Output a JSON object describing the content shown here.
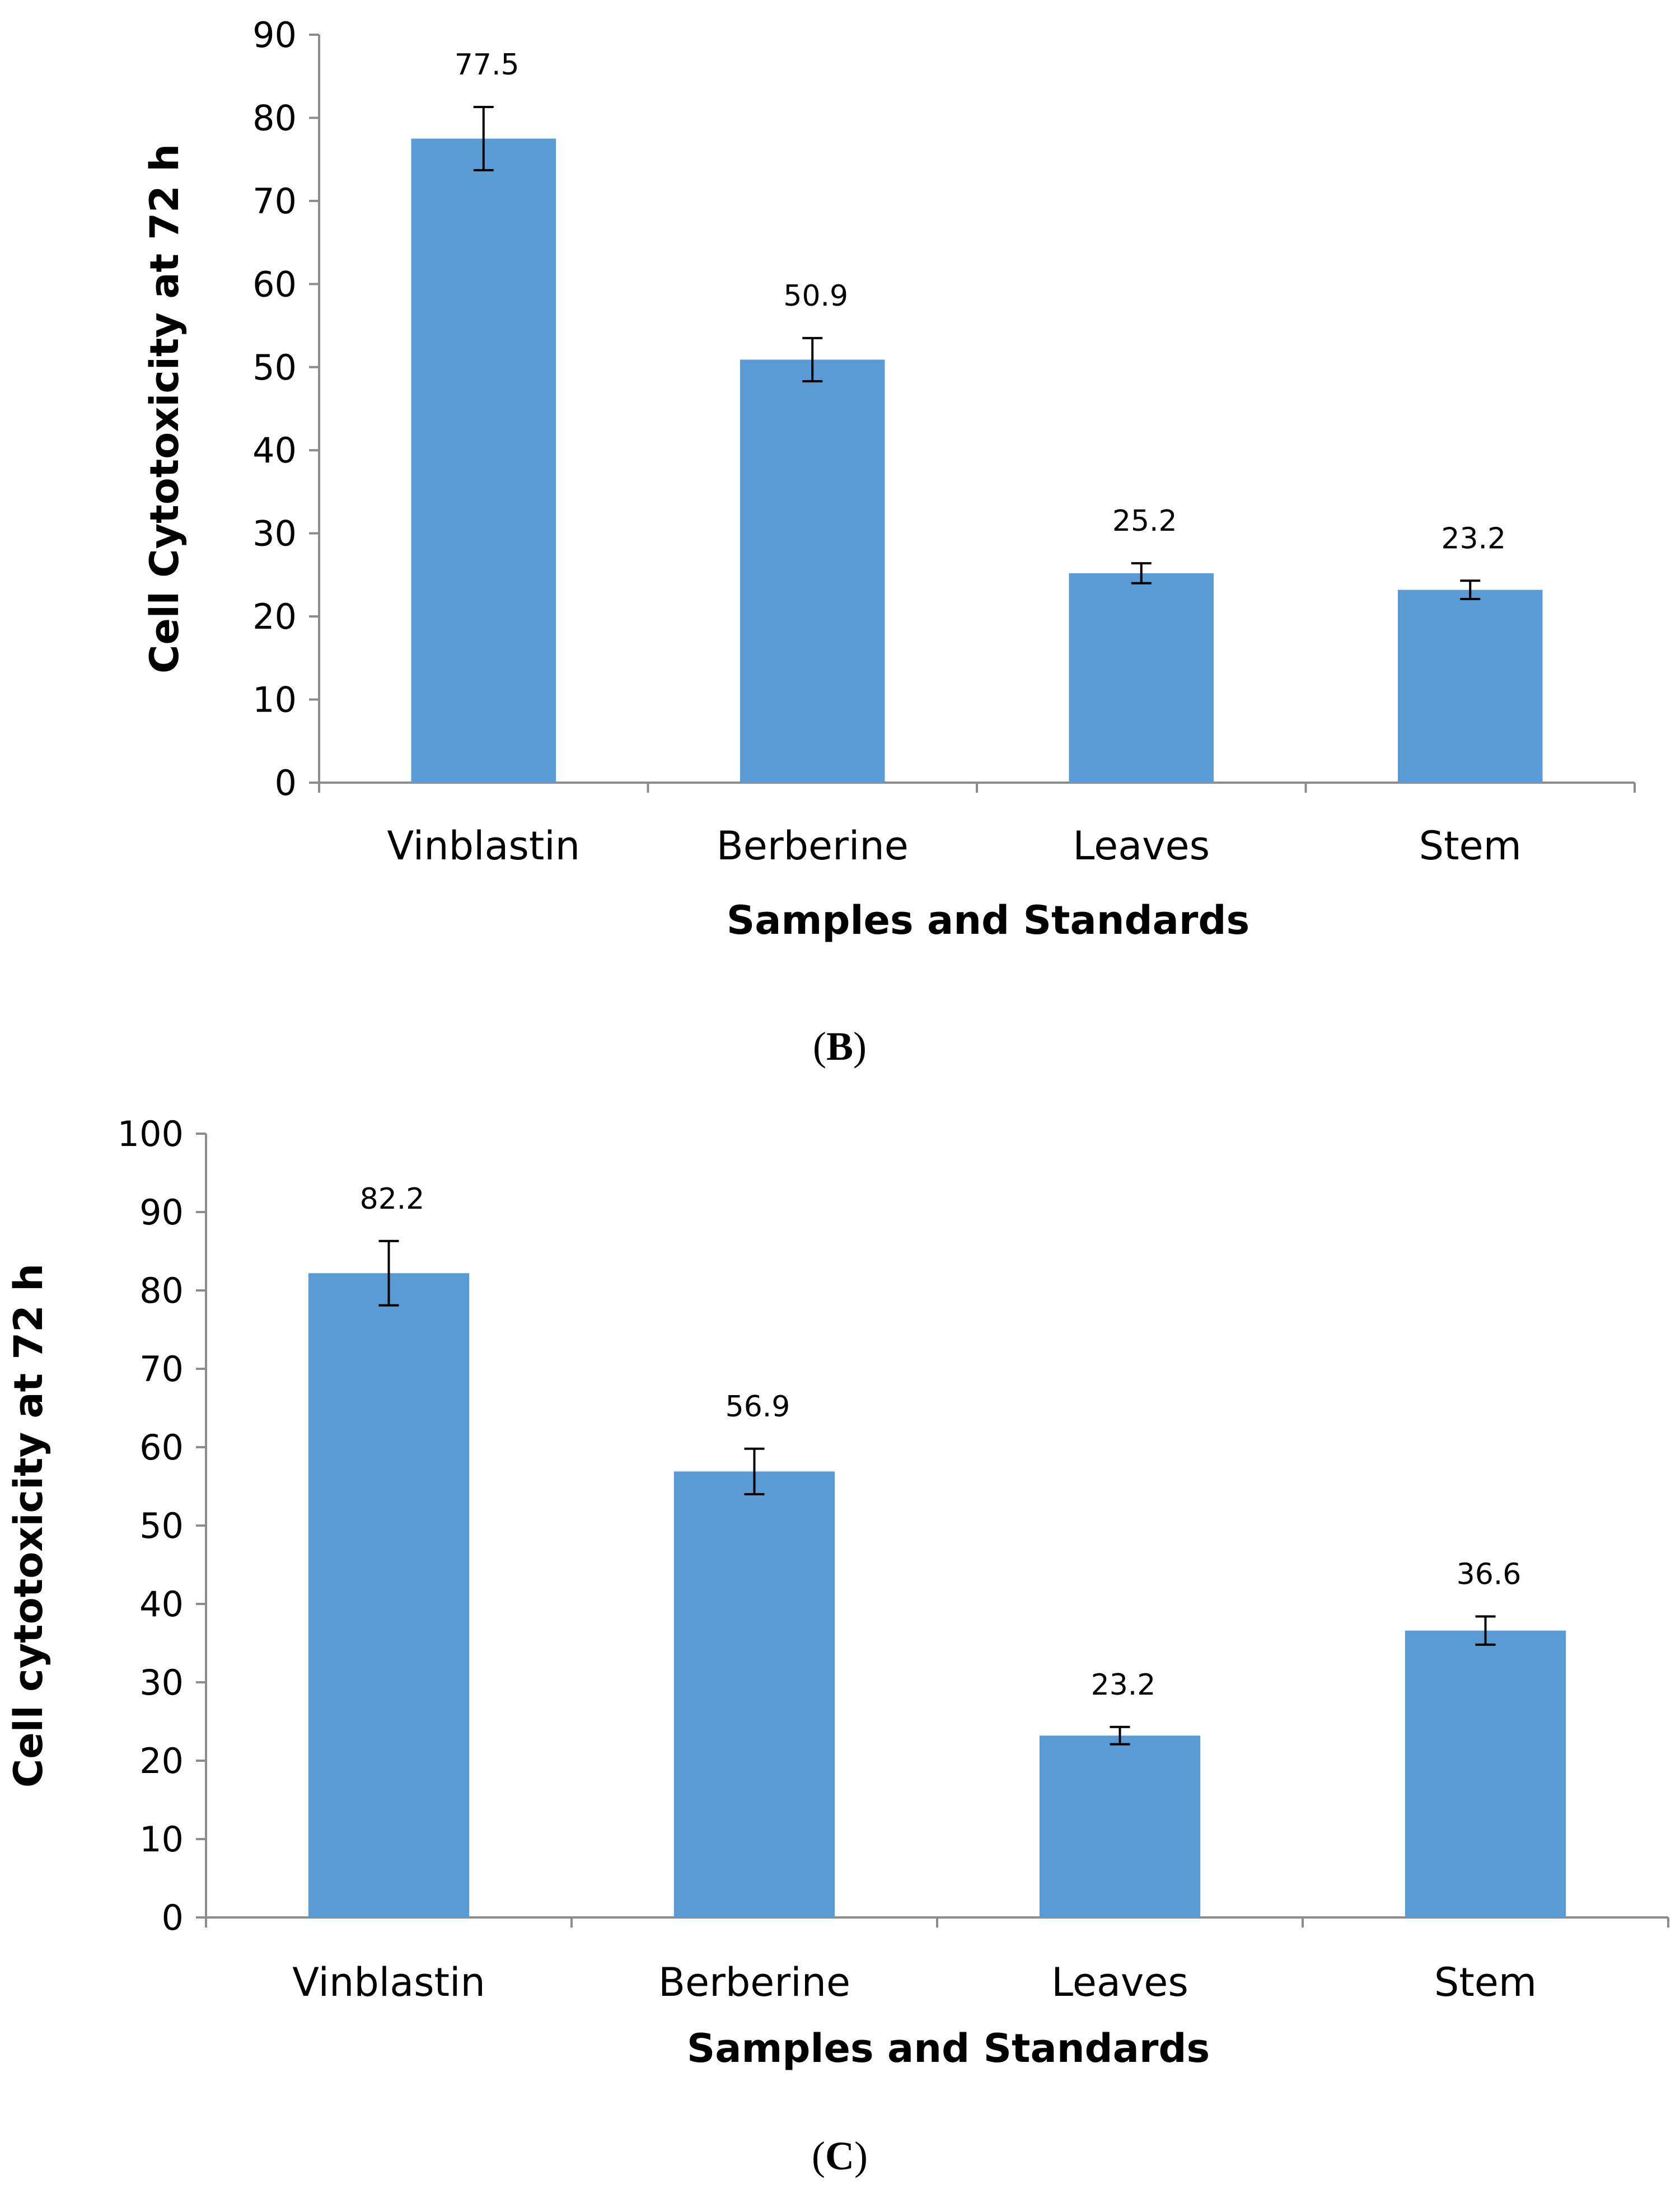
{
  "colors": {
    "bar": "#5b9bd5",
    "axis": "#8c8c8c",
    "error_bar": "#000000"
  },
  "chart_data": [
    {
      "type": "bar",
      "panel": "B",
      "panel_open": "(",
      "panel_close": ")",
      "title": "",
      "xlabel": "Samples and Standards",
      "ylabel": "Cell Cytotoxicity at 72 h",
      "ylim": [
        0,
        90
      ],
      "yticks": [
        0,
        10,
        20,
        30,
        40,
        50,
        60,
        70,
        80,
        90
      ],
      "categories": [
        "Vinblastin",
        "Berberine",
        "Leaves",
        "Stem"
      ],
      "values": [
        77.5,
        50.9,
        25.2,
        23.2
      ],
      "value_labels": [
        "77.5",
        "50.9",
        "25.2",
        "23.2"
      ],
      "errors": [
        3.8,
        2.6,
        1.2,
        1.1
      ],
      "grid": false,
      "legend": "none"
    },
    {
      "type": "bar",
      "panel": "C",
      "panel_open": "(",
      "panel_close": ")",
      "title": "",
      "xlabel": "Samples and Standards",
      "ylabel": "Cell cytotoxicity at 72 h",
      "ylim": [
        0,
        100
      ],
      "yticks": [
        0,
        10,
        20,
        30,
        40,
        50,
        60,
        70,
        80,
        90,
        100
      ],
      "categories": [
        "Vinblastin",
        "Berberine",
        "Leaves",
        "Stem"
      ],
      "values": [
        82.2,
        56.9,
        23.2,
        36.6
      ],
      "value_labels": [
        "82.2",
        "56.9",
        "23.2",
        "36.6"
      ],
      "errors": [
        4.1,
        2.9,
        1.1,
        1.8
      ],
      "grid": false,
      "legend": "none"
    }
  ]
}
